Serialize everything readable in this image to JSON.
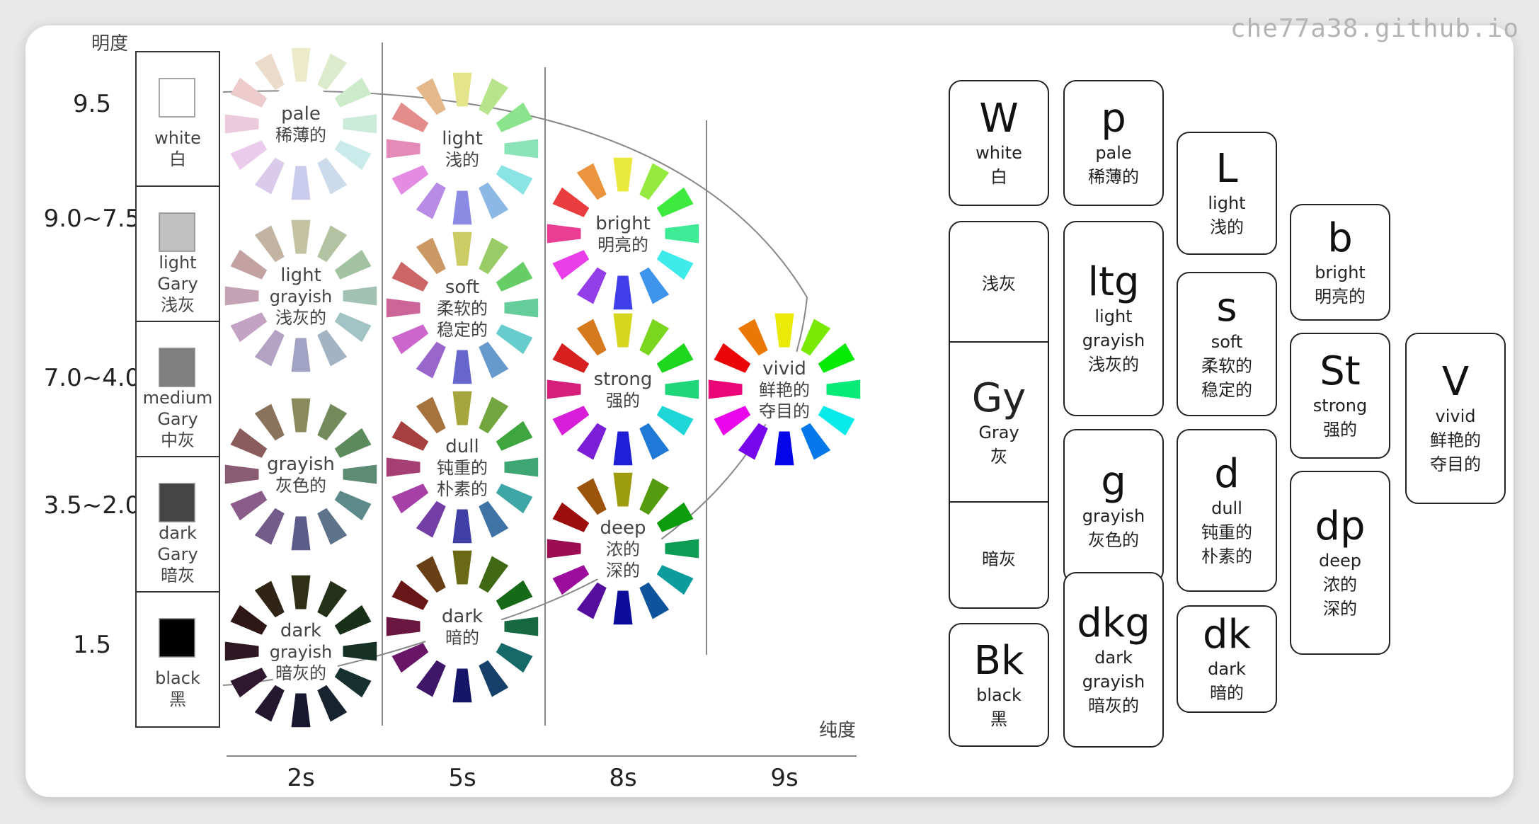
{
  "watermark": "che77a38.github.io",
  "left_chart": {
    "y_axis_title": "明度",
    "x_axis_title": "纯度",
    "y_levels": [
      "9.5",
      "9.0~7.5",
      "7.0~4.0",
      "3.5~2.0",
      "1.5"
    ],
    "x_levels": [
      "2s",
      "5s",
      "8s",
      "9s"
    ],
    "gray_scale": [
      {
        "lines": [
          "white",
          "白"
        ],
        "swatch": "#ffffff"
      },
      {
        "lines": [
          "light",
          "Gary",
          "浅灰"
        ],
        "swatch": "#c0c0c0"
      },
      {
        "lines": [
          "medium",
          "Gary",
          "中灰"
        ],
        "swatch": "#808080"
      },
      {
        "lines": [
          "dark",
          "Gary",
          "暗灰"
        ],
        "swatch": "#444444"
      },
      {
        "lines": [
          "black",
          "黑"
        ],
        "swatch": "#000000"
      }
    ],
    "wheels": [
      {
        "id": "pale",
        "lines": [
          "pale",
          "稀薄的"
        ],
        "saturation": 0.45,
        "lightness": 0.86
      },
      {
        "id": "light-grayish",
        "lines": [
          "light",
          "grayish",
          "浅灰的"
        ],
        "saturation": 0.22,
        "lightness": 0.7
      },
      {
        "id": "grayish",
        "lines": [
          "grayish",
          "灰色的"
        ],
        "saturation": 0.2,
        "lightness": 0.45
      },
      {
        "id": "dark-grayish",
        "lines": [
          "dark",
          "grayish",
          "暗灰的"
        ],
        "saturation": 0.35,
        "lightness": 0.14
      },
      {
        "id": "light",
        "lines": [
          "light",
          "浅的"
        ],
        "saturation": 0.62,
        "lightness": 0.72
      },
      {
        "id": "soft",
        "lines": [
          "soft",
          "柔软的",
          "稳定的"
        ],
        "saturation": 0.5,
        "lightness": 0.6
      },
      {
        "id": "dull",
        "lines": [
          "dull",
          "钝重的",
          "朴素的"
        ],
        "saturation": 0.45,
        "lightness": 0.45
      },
      {
        "id": "dark",
        "lines": [
          "dark",
          "暗的"
        ],
        "saturation": 0.65,
        "lightness": 0.25
      },
      {
        "id": "bright",
        "lines": [
          "bright",
          "明亮的"
        ],
        "saturation": 0.8,
        "lightness": 0.58
      },
      {
        "id": "strong",
        "lines": [
          "strong",
          "强的"
        ],
        "saturation": 0.75,
        "lightness": 0.48
      },
      {
        "id": "deep",
        "lines": [
          "deep",
          "浓的",
          "深的"
        ],
        "saturation": 0.85,
        "lightness": 0.33
      },
      {
        "id": "vivid",
        "lines": [
          "vivid",
          "鲜艳的",
          "夺目的"
        ],
        "saturation": 0.95,
        "lightness": 0.47
      }
    ]
  },
  "tone_tiles": [
    {
      "id": "W",
      "code": "W",
      "lines": [
        "white",
        "白"
      ]
    },
    {
      "id": "Bk",
      "code": "Bk",
      "lines": [
        "black",
        "黑"
      ]
    },
    {
      "id": "p",
      "code": "p",
      "lines": [
        "pale",
        "稀薄的"
      ]
    },
    {
      "id": "ltg",
      "code": "ltg",
      "lines": [
        "light",
        "grayish",
        "浅灰的"
      ]
    },
    {
      "id": "g",
      "code": "g",
      "lines": [
        "grayish",
        "灰色的"
      ]
    },
    {
      "id": "dkg",
      "code": "dkg",
      "lines": [
        "dark",
        "grayish",
        "暗灰的"
      ]
    },
    {
      "id": "L",
      "code": "L",
      "lines": [
        "light",
        "浅的"
      ]
    },
    {
      "id": "s",
      "code": "s",
      "lines": [
        "soft",
        "柔软的",
        "稳定的"
      ]
    },
    {
      "id": "d",
      "code": "d",
      "lines": [
        "dull",
        "钝重的",
        "朴素的"
      ]
    },
    {
      "id": "dk",
      "code": "dk",
      "lines": [
        "dark",
        "暗的"
      ]
    },
    {
      "id": "b",
      "code": "b",
      "lines": [
        "bright",
        "明亮的"
      ]
    },
    {
      "id": "St",
      "code": "St",
      "lines": [
        "strong",
        "强的"
      ]
    },
    {
      "id": "dp",
      "code": "dp",
      "lines": [
        "deep",
        "浓的",
        "深的"
      ]
    },
    {
      "id": "V",
      "code": "V",
      "lines": [
        "vivid",
        "鲜艳的",
        "夺目的"
      ]
    }
  ],
  "gray_tile": {
    "top": "浅灰",
    "code": "Gy",
    "middle_lines": [
      "Gray",
      "灰"
    ],
    "bottom": "暗灰"
  }
}
